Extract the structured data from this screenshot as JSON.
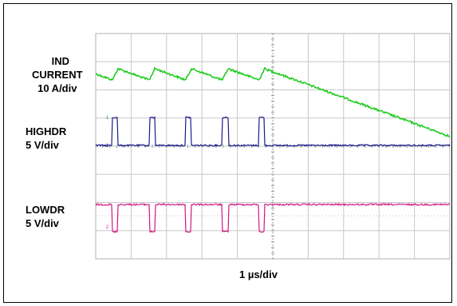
{
  "chart_data": {
    "type": "line",
    "title": "",
    "xlabel": "1 µs/div",
    "x_divisions": 10,
    "y_divisions": 8,
    "x_range_us": [
      0,
      10
    ],
    "grid": true,
    "traces": [
      {
        "name_lines": [
          "IND",
          "CURRENT",
          "10 A/div"
        ],
        "color": "#22cc22",
        "kind": "triangle",
        "description": "inductor current ripple, ramps up during high-side on, ramps down otherwise",
        "period_us": 1.03,
        "ripple_div": 0.4
      },
      {
        "name_lines": [
          "HIGHDR",
          "5 V/div"
        ],
        "color": "#1a1a8c",
        "kind": "pulse",
        "level_low_div": 0,
        "level_high_div": 1,
        "pulse_starts_us": [
          0.47,
          1.51,
          2.54,
          3.58,
          4.61
        ],
        "pulse_width_us": 0.16,
        "marker": "1"
      },
      {
        "name_lines": [
          "LOWDR",
          "5 V/div"
        ],
        "color": "#d01880",
        "kind": "pulse_inverted",
        "level_low_div": 0,
        "level_high_div": 1,
        "pulse_starts_us": [
          0.47,
          1.51,
          2.54,
          3.58,
          4.61
        ],
        "pulse_width_us": 0.16,
        "marker": "2"
      }
    ]
  }
}
